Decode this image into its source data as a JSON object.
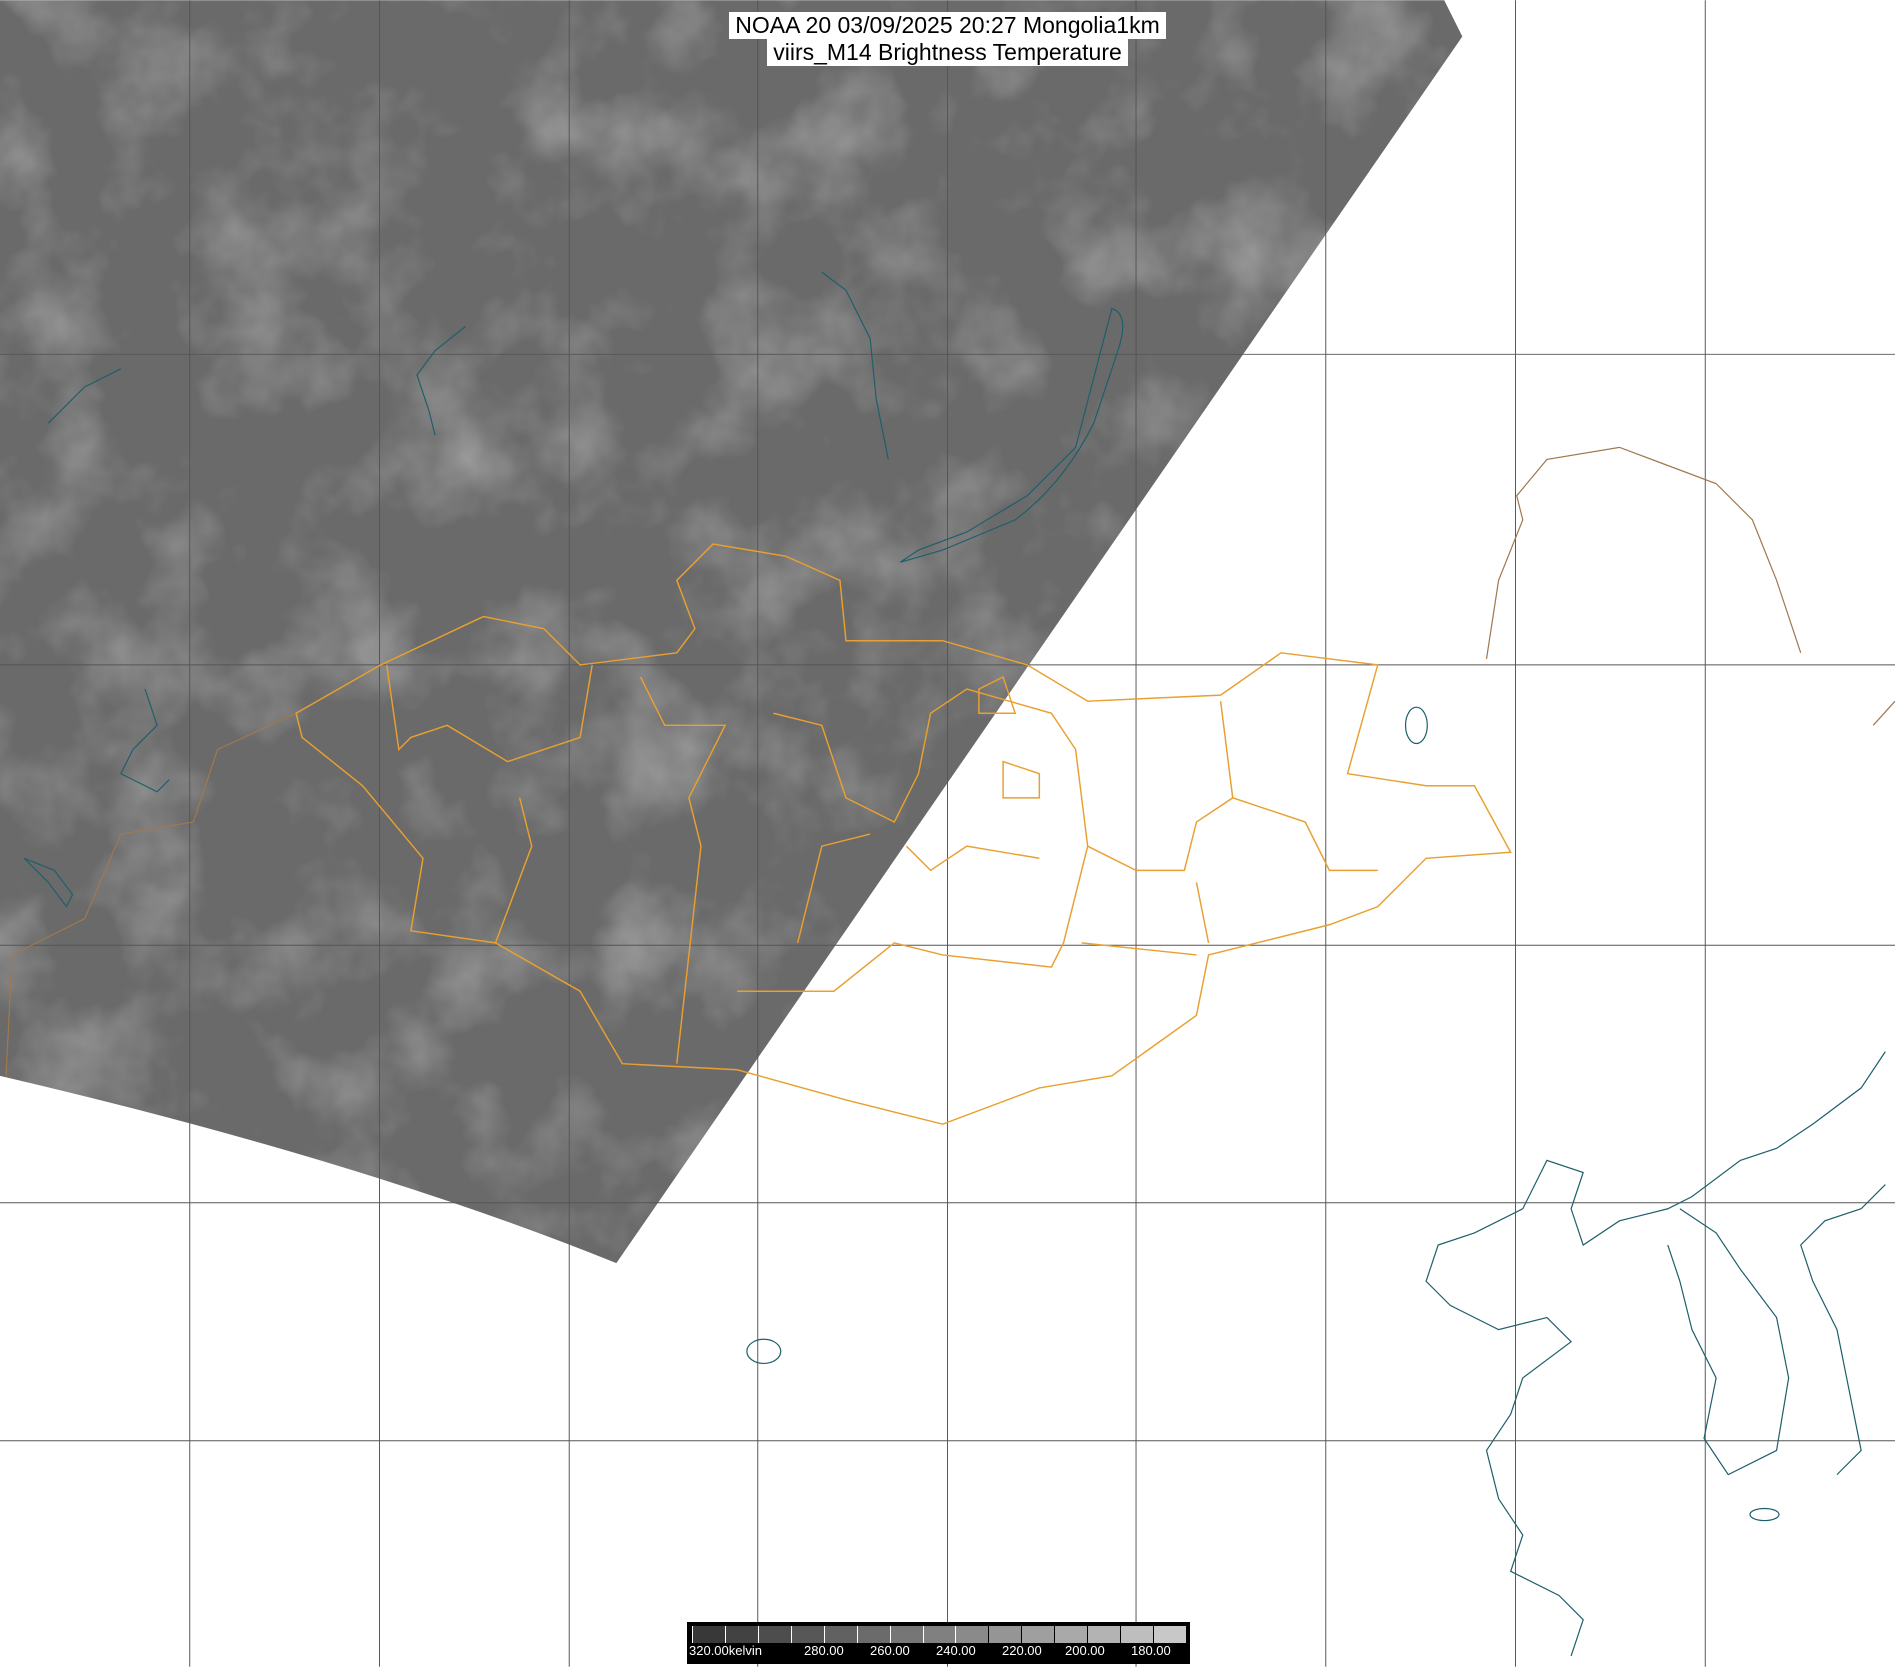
{
  "title": {
    "line1": "NOAA 20 03/09/2025 20:27 Mongolia1km",
    "line2": "viirs_M14 Brightness Temperature"
  },
  "colorbar": {
    "labels": [
      "320.00kelvin",
      "280.00",
      "260.00",
      "240.00",
      "220.00",
      "200.00",
      "180.00"
    ],
    "range_kelvin": [
      320,
      175
    ],
    "dark_color": "#383838",
    "light_color": "#c8c8c8"
  },
  "colors": {
    "swath": "#6a6a6a",
    "grid": "#555555",
    "coastline": "#1f5f6b",
    "mongolia_border": "#e8a030",
    "other_border": "#a07850"
  }
}
